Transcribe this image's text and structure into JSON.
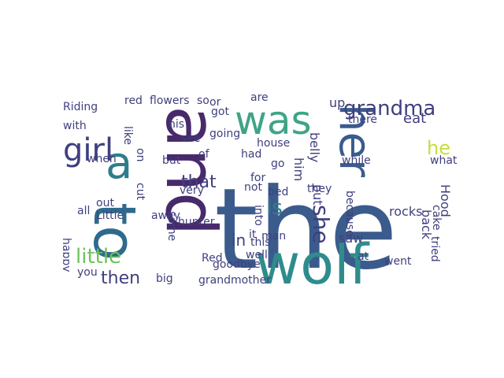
{
  "palette": {
    "background": "#ffffff",
    "dark_purple": "#482a6b",
    "indigo": "#3f3f7f",
    "blue": "#3b5b8c",
    "teal": "#2f7d8c",
    "green_teal": "#2a9d7f",
    "green": "#52b969",
    "light_green": "#8fd14f",
    "yellow_green": "#c8dd3b"
  },
  "words": [
    {
      "text": "the",
      "color": "#3b5b8c"
    },
    {
      "text": "and",
      "color": "#482a6b"
    },
    {
      "text": "to",
      "color": "#2f6a8c"
    },
    {
      "text": "wolf",
      "color": "#2f8c8c"
    },
    {
      "text": "was",
      "color": "#3ea486"
    },
    {
      "text": "her",
      "color": "#3a5b8c"
    },
    {
      "text": "a",
      "color": "#2f7d8c"
    },
    {
      "text": "girl",
      "color": "#3f3f7f"
    },
    {
      "text": "grandma",
      "color": "#3f3f7f"
    },
    {
      "text": "he",
      "color": "#c8dd3b"
    },
    {
      "text": "she",
      "color": "#3f3f7f"
    },
    {
      "text": "little",
      "color": "#6dc35c"
    },
    {
      "text": "then",
      "color": "#3f3f7f"
    },
    {
      "text": "that",
      "color": "#3f3f7f"
    },
    {
      "text": "is",
      "color": "#2f7d8c"
    },
    {
      "text": "in",
      "color": "#3f3f7f"
    },
    {
      "text": "Hood",
      "color": "#3f3f7f"
    },
    {
      "text": "back",
      "color": "#3f3f7f"
    },
    {
      "text": "saw",
      "color": "#3f3f7f"
    },
    {
      "text": "eat",
      "color": "#3f3f7f"
    },
    {
      "text": "up",
      "color": "#3f3f7f"
    },
    {
      "text": "belly",
      "color": "#3f3f7f"
    },
    {
      "text": "him",
      "color": "#3f3f7f"
    },
    {
      "text": "put",
      "color": "#3f3f7f"
    },
    {
      "text": "went",
      "color": "#3f3f7f"
    },
    {
      "text": "rocks",
      "color": "#3f3f7f"
    },
    {
      "text": "tried",
      "color": "#3f3f7f"
    },
    {
      "text": "because",
      "color": "#3f3f7f"
    },
    {
      "text": "at",
      "color": "#3f3f7f"
    },
    {
      "text": "they",
      "color": "#3f3f7f"
    },
    {
      "text": "while",
      "color": "#3f3f7f"
    },
    {
      "text": "there",
      "color": "#3f3f7f"
    },
    {
      "text": "what",
      "color": "#3f3f7f"
    },
    {
      "text": "cake",
      "color": "#3f3f7f"
    },
    {
      "text": "Riding",
      "color": "#3f3f7f"
    },
    {
      "text": "red",
      "color": "#3f3f7f"
    },
    {
      "text": "flowers",
      "color": "#3f3f7f"
    },
    {
      "text": "so",
      "color": "#3f3f7f"
    },
    {
      "text": "with",
      "color": "#3f3f7f"
    },
    {
      "text": "like",
      "color": "#3f3f7f"
    },
    {
      "text": "on",
      "color": "#3f3f7f"
    },
    {
      "text": "when",
      "color": "#3f3f7f"
    },
    {
      "text": "but",
      "color": "#3f3f7f"
    },
    {
      "text": "see",
      "color": "#3f3f7f"
    },
    {
      "text": "his",
      "color": "#3f3f7f"
    },
    {
      "text": "of",
      "color": "#3f3f7f"
    },
    {
      "text": "cut",
      "color": "#3f3f7f"
    },
    {
      "text": "all",
      "color": "#3f3f7f"
    },
    {
      "text": "out",
      "color": "#3f3f7f"
    },
    {
      "text": "Little",
      "color": "#3f3f7f"
    },
    {
      "text": "away",
      "color": "#3f3f7f"
    },
    {
      "text": "very",
      "color": "#3f3f7f"
    },
    {
      "text": "hunter",
      "color": "#3f3f7f"
    },
    {
      "text": "big",
      "color": "#3f3f7f"
    },
    {
      "text": "you",
      "color": "#3f3f7f"
    },
    {
      "text": "happy",
      "color": "#3f3f7f"
    },
    {
      "text": "grandmother",
      "color": "#3f3f7f"
    },
    {
      "text": "Red",
      "color": "#3f3f7f"
    },
    {
      "text": "goodbye",
      "color": "#3f3f7f"
    },
    {
      "text": "well",
      "color": "#3f3f7f"
    },
    {
      "text": "this",
      "color": "#3f3f7f"
    },
    {
      "text": "man",
      "color": "#3f3f7f"
    },
    {
      "text": "it",
      "color": "#3f3f7f"
    },
    {
      "text": "not",
      "color": "#3f3f7f"
    },
    {
      "text": "into",
      "color": "#3f3f7f"
    },
    {
      "text": "for",
      "color": "#3f3f7f"
    },
    {
      "text": "go",
      "color": "#3f3f7f"
    },
    {
      "text": "bed",
      "color": "#3f3f7f"
    },
    {
      "text": "had",
      "color": "#3f3f7f"
    },
    {
      "text": "house",
      "color": "#3f3f7f"
    },
    {
      "text": "going",
      "color": "#3f3f7f"
    },
    {
      "text": "got",
      "color": "#3f3f7f"
    },
    {
      "text": "are",
      "color": "#3f3f7f"
    },
    {
      "text": "or",
      "color": "#3f3f7f"
    },
    {
      "text": "some",
      "color": "#3f3f7f"
    }
  ]
}
